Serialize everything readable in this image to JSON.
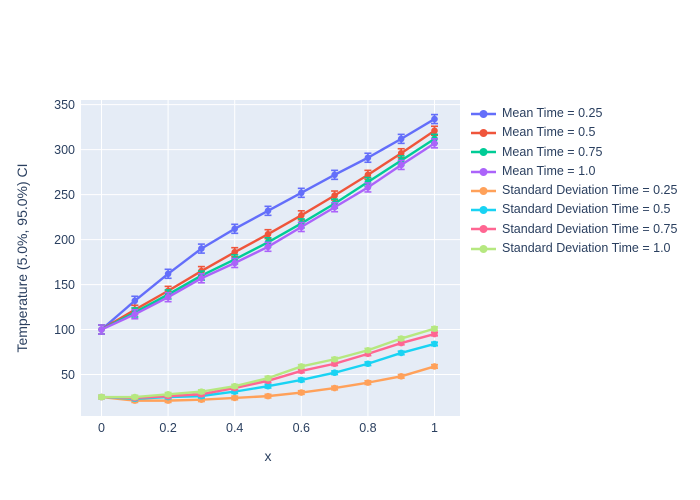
{
  "figure": {
    "background_color": "#ffffff",
    "plot_bgcolor": "#e5ecf6",
    "grid_color": "#ffffff",
    "font_color": "#2a3f5f"
  },
  "chart_data": {
    "type": "line",
    "title": "",
    "xlabel": "x",
    "ylabel": "Temperature (5.0%, 95.0%) CI",
    "grid": true,
    "legend_position": "right-outside",
    "xlim": [
      -0.0616,
      1.0766
    ],
    "ylim": [
      3.9,
      355.2
    ],
    "x": [
      0,
      0.1,
      0.2,
      0.3,
      0.4,
      0.5,
      0.6,
      0.7,
      0.8,
      0.9,
      1.0
    ],
    "xticks": {
      "values": [
        0,
        0.2,
        0.4,
        0.6,
        0.8,
        1
      ],
      "labels": [
        "0",
        "0.2",
        "0.4",
        "0.6",
        "0.8",
        "1"
      ]
    },
    "yticks": {
      "values": [
        50,
        100,
        150,
        200,
        250,
        300,
        350
      ],
      "labels": [
        "50",
        "100",
        "150",
        "200",
        "250",
        "300",
        "350"
      ]
    },
    "series": [
      {
        "name": "Mean Time = 0.25",
        "color": "#636efa",
        "error": 5,
        "values": [
          100,
          132,
          162,
          190,
          212,
          232,
          252,
          272,
          291,
          312,
          334
        ]
      },
      {
        "name": "Mean Time = 0.5",
        "color": "#ef553b",
        "error": 5,
        "values": [
          100,
          122,
          143,
          165,
          186,
          206,
          227,
          249,
          272,
          296,
          321
        ]
      },
      {
        "name": "Mean Time = 0.75",
        "color": "#00cc96",
        "error": 5,
        "values": [
          100,
          119,
          139,
          160,
          178,
          197,
          218,
          240,
          264,
          288,
          312
        ]
      },
      {
        "name": "Mean Time = 1.0",
        "color": "#ab63fa",
        "error": 5,
        "values": [
          100,
          117,
          136,
          157,
          174,
          192,
          214,
          236,
          258,
          283,
          307
        ]
      },
      {
        "name": "Standard Deviation Time = 0.25",
        "color": "#ffa15a",
        "error": 2,
        "values": [
          25,
          21,
          21,
          22,
          24,
          26,
          30,
          35,
          41,
          48,
          59
        ]
      },
      {
        "name": "Standard Deviation Time = 0.5",
        "color": "#19d3f3",
        "error": 2,
        "values": [
          25,
          23,
          25,
          26,
          31,
          37,
          44,
          52,
          62,
          74,
          84
        ]
      },
      {
        "name": "Standard Deviation Time = 0.75",
        "color": "#ff6692",
        "error": 2,
        "values": [
          25,
          24,
          26,
          28,
          35,
          43,
          54,
          62,
          73,
          85,
          95
        ]
      },
      {
        "name": "Standard Deviation Time = 1.0",
        "color": "#b6e880",
        "error": 2,
        "values": [
          25,
          25,
          28,
          31,
          37,
          46,
          59,
          67,
          77,
          90,
          101
        ]
      }
    ]
  }
}
